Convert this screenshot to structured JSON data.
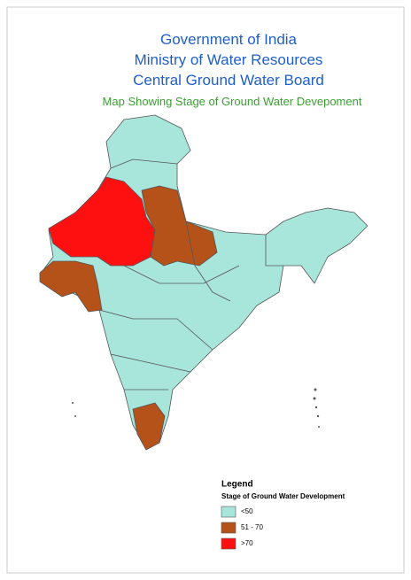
{
  "header": {
    "line1": "Government of India",
    "line2": "Ministry of Water Resources",
    "line3": "Central Ground Water Board",
    "subtitle": "Map Showing Stage of Ground Water Devepoment"
  },
  "legend": {
    "title": "Legend",
    "subtitle": "Stage of Ground Water Development",
    "items": [
      {
        "label": "<50",
        "color": "#a8e6dc"
      },
      {
        "label": "51 - 70",
        "color": "#b5521a"
      },
      {
        "label": ">70",
        "color": "#ff1010"
      }
    ]
  }
}
